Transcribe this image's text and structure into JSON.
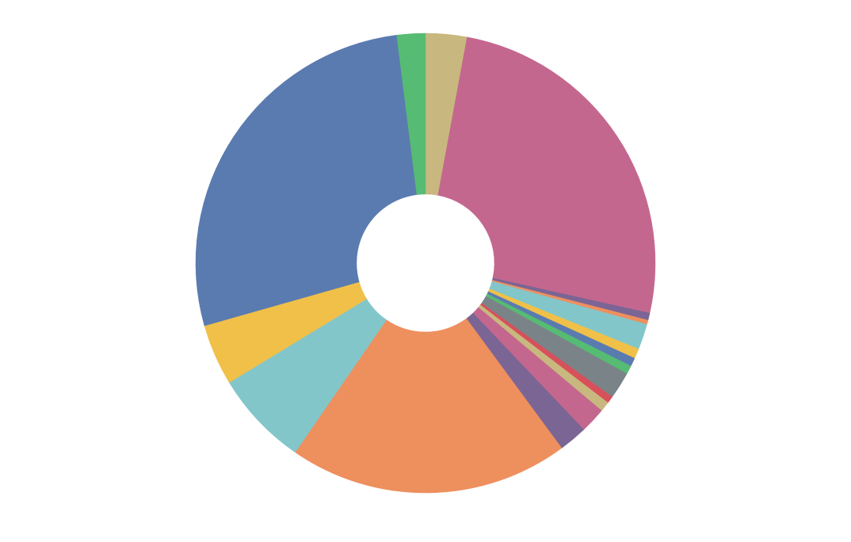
{
  "chart_data": {
    "type": "pie",
    "values": [
      2.9,
      25.6,
      0.5,
      0.3,
      1.8,
      0.7,
      0.6,
      0.6,
      1.9,
      0.5,
      0.7,
      1.8,
      2.0,
      19.7,
      6.7,
      4.3,
      27.4,
      2.0
    ],
    "colors": [
      "#c8b87f",
      "#c4678e",
      "#7b6594",
      "#ee8f5e",
      "#82c6ca",
      "#f0c048",
      "#5a7bb0",
      "#56bb73",
      "#7a8388",
      "#d7505a",
      "#c8b87f",
      "#c4678e",
      "#7b6594",
      "#ee8f5e",
      "#82c6ca",
      "#f0c048",
      "#5a7bb0",
      "#56bb73"
    ]
  }
}
